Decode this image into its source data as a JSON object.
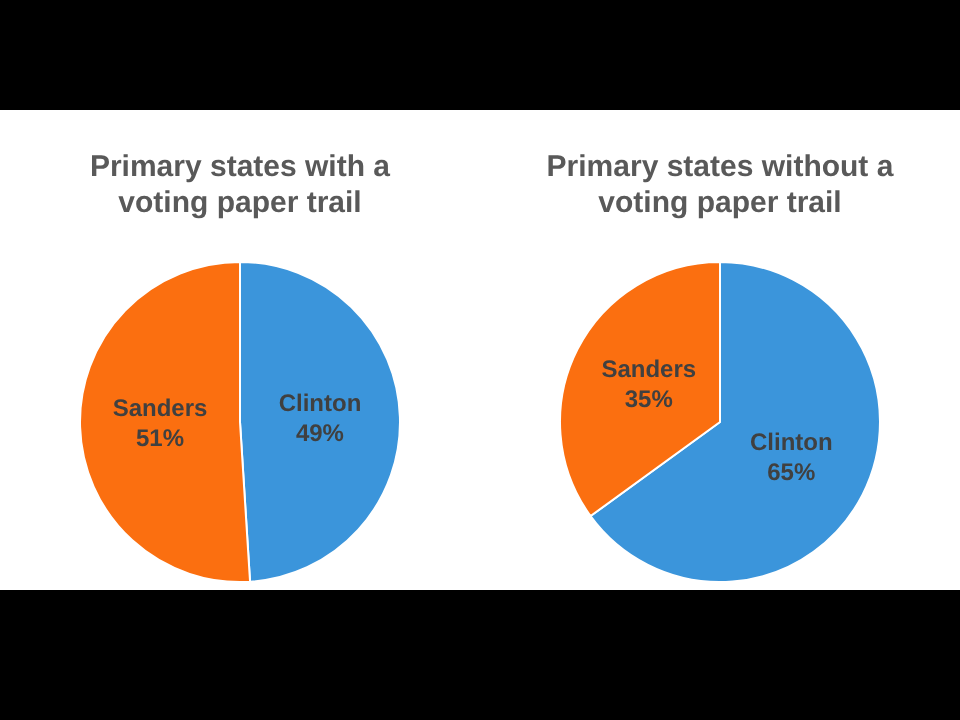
{
  "chart_data": [
    {
      "type": "pie",
      "title": "Primary states with a voting paper trail",
      "categories": [
        "Clinton",
        "Sanders"
      ],
      "values": [
        49,
        51
      ],
      "colors": [
        "#3b95db",
        "#fb6f10"
      ],
      "value_labels": [
        "49%",
        "51%"
      ],
      "legend": false
    },
    {
      "type": "pie",
      "title": "Primary states without a voting paper trail",
      "categories": [
        "Clinton",
        "Sanders"
      ],
      "values": [
        65,
        35
      ],
      "colors": [
        "#3b95db",
        "#fb6f10"
      ],
      "value_labels": [
        "65%",
        "35%"
      ],
      "legend": false
    }
  ]
}
